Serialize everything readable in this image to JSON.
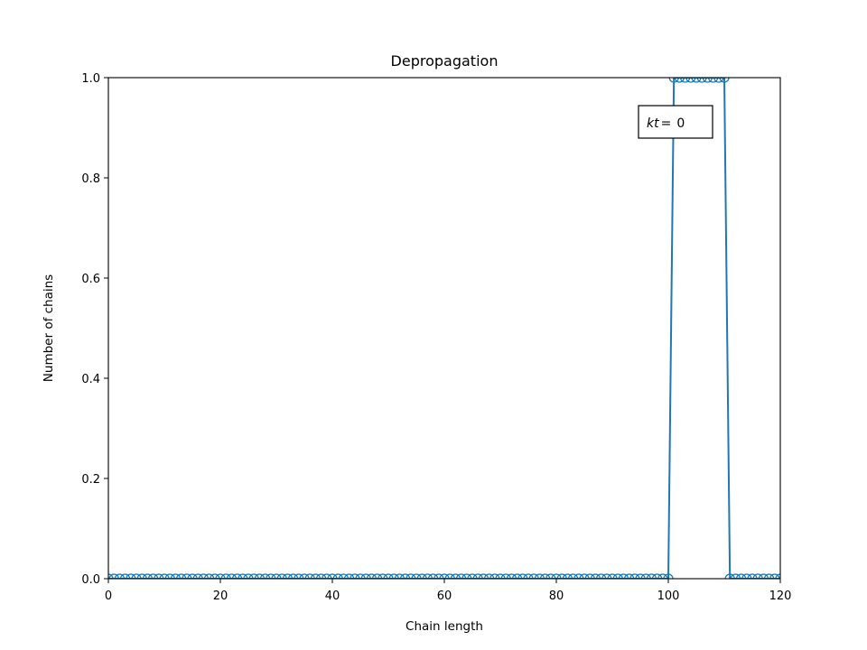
{
  "chart_data": {
    "type": "line",
    "title": "Depropagation",
    "xlabel": "Chain length",
    "ylabel": "Number of chains",
    "xlim": [
      0,
      120
    ],
    "ylim": [
      0,
      1
    ],
    "xticks": [
      0,
      20,
      40,
      60,
      80,
      100,
      120
    ],
    "yticks": [
      0.0,
      0.2,
      0.4,
      0.6,
      0.8,
      1.0
    ],
    "xtick_labels": [
      "0",
      "20",
      "40",
      "60",
      "80",
      "100",
      "120"
    ],
    "ytick_labels": [
      "0.0",
      "0.2",
      "0.4",
      "0.6",
      "0.8",
      "1.0"
    ],
    "grid": false,
    "marker": "circle-open",
    "color": "#1f77b4",
    "x": [
      0,
      1,
      2,
      3,
      4,
      5,
      6,
      7,
      8,
      9,
      10,
      11,
      12,
      13,
      14,
      15,
      16,
      17,
      18,
      19,
      20,
      21,
      22,
      23,
      24,
      25,
      26,
      27,
      28,
      29,
      30,
      31,
      32,
      33,
      34,
      35,
      36,
      37,
      38,
      39,
      40,
      41,
      42,
      43,
      44,
      45,
      46,
      47,
      48,
      49,
      50,
      51,
      52,
      53,
      54,
      55,
      56,
      57,
      58,
      59,
      60,
      61,
      62,
      63,
      64,
      65,
      66,
      67,
      68,
      69,
      70,
      71,
      72,
      73,
      74,
      75,
      76,
      77,
      78,
      79,
      80,
      81,
      82,
      83,
      84,
      85,
      86,
      87,
      88,
      89,
      90,
      91,
      92,
      93,
      94,
      95,
      96,
      97,
      98,
      99,
      100,
      101,
      102,
      103,
      104,
      105,
      106,
      107,
      108,
      109,
      110,
      111,
      112,
      113,
      114,
      115,
      116,
      117,
      118,
      119,
      120
    ],
    "y": [
      0,
      0,
      0,
      0,
      0,
      0,
      0,
      0,
      0,
      0,
      0,
      0,
      0,
      0,
      0,
      0,
      0,
      0,
      0,
      0,
      0,
      0,
      0,
      0,
      0,
      0,
      0,
      0,
      0,
      0,
      0,
      0,
      0,
      0,
      0,
      0,
      0,
      0,
      0,
      0,
      0,
      0,
      0,
      0,
      0,
      0,
      0,
      0,
      0,
      0,
      0,
      0,
      0,
      0,
      0,
      0,
      0,
      0,
      0,
      0,
      0,
      0,
      0,
      0,
      0,
      0,
      0,
      0,
      0,
      0,
      0,
      0,
      0,
      0,
      0,
      0,
      0,
      0,
      0,
      0,
      0,
      0,
      0,
      0,
      0,
      0,
      0,
      0,
      0,
      0,
      0,
      0,
      0,
      0,
      0,
      0,
      0,
      0,
      0,
      0,
      0,
      1,
      1,
      1,
      1,
      1,
      1,
      1,
      1,
      1,
      1,
      0,
      0,
      0,
      0,
      0,
      0,
      0,
      0,
      0,
      0
    ],
    "annotation": {
      "prefix": "kt",
      "eq": "=",
      "value": "0"
    }
  }
}
